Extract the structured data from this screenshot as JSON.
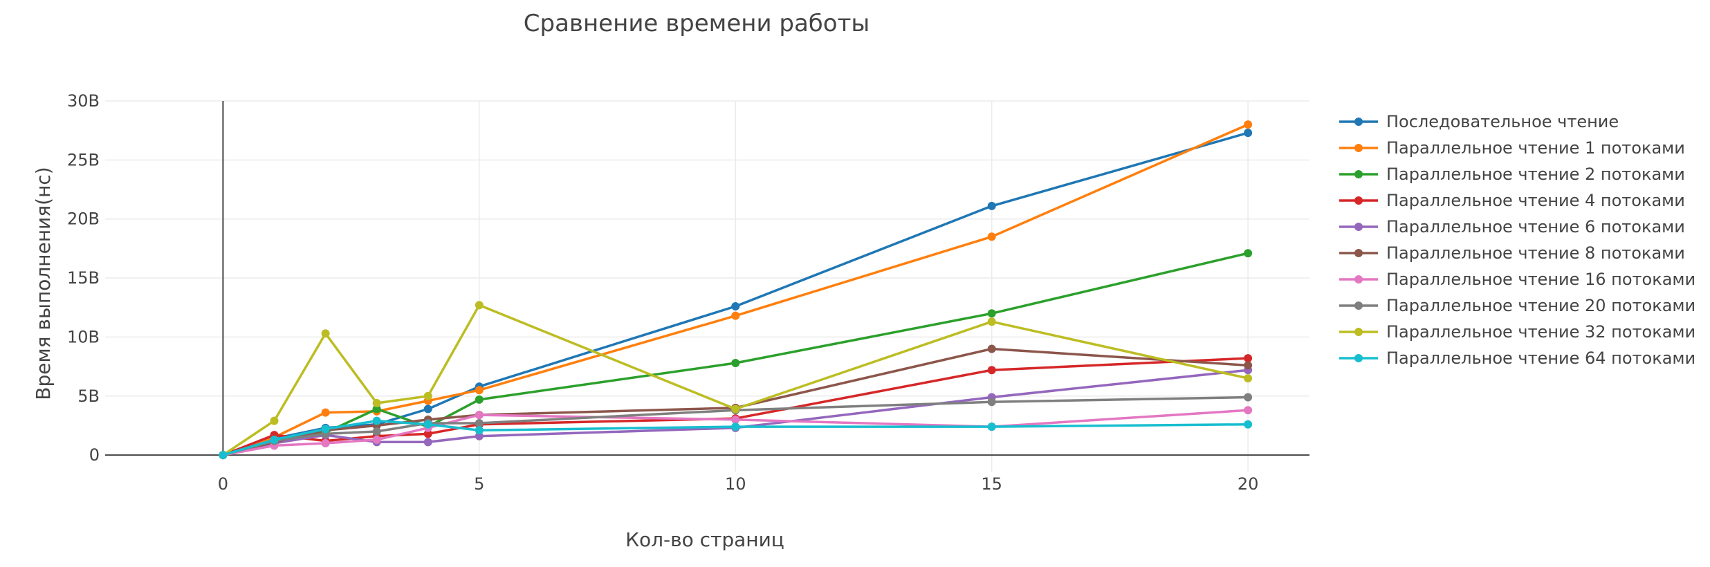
{
  "chart_data": {
    "type": "line",
    "title": "Сравнение времени работы",
    "xlabel": "Кол-во страниц",
    "ylabel": "Время выполнения(нс)",
    "x": [
      0,
      1,
      2,
      3,
      4,
      5,
      10,
      15,
      20
    ],
    "xticks": [
      0,
      5,
      10,
      15,
      20
    ],
    "xtick_labels": [
      "0",
      "5",
      "10",
      "15",
      "20"
    ],
    "yticks": [
      0,
      5000000000,
      10000000000,
      15000000000,
      20000000000,
      25000000000,
      30000000000
    ],
    "ytick_labels": [
      "0",
      "5B",
      "10B",
      "15B",
      "20B",
      "25B",
      "30B"
    ],
    "xlim": [
      -2.3,
      21.2
    ],
    "ylim": [
      -1400000000,
      30000000000
    ],
    "grid": true,
    "legend_position": "right",
    "series": [
      {
        "name": "Последовательное чтение",
        "color": "#1f77b4",
        "values": [
          0,
          1400000000,
          2300000000,
          2600000000,
          3900000000,
          5800000000,
          12600000000,
          21100000000,
          27300000000
        ]
      },
      {
        "name": "Параллельное чтение 1 потоками",
        "color": "#ff7f0e",
        "values": [
          0,
          1500000000,
          3600000000,
          3700000000,
          4600000000,
          5500000000,
          11800000000,
          18500000000,
          28000000000
        ]
      },
      {
        "name": "Параллельное чтение 2 потоками",
        "color": "#2ca02c",
        "values": [
          0,
          1200000000,
          1900000000,
          3900000000,
          2400000000,
          4700000000,
          7800000000,
          12000000000,
          17100000000
        ]
      },
      {
        "name": "Параллельное чтение 4 потоками",
        "color": "#d62728",
        "values": [
          0,
          1700000000,
          1200000000,
          1600000000,
          1800000000,
          2600000000,
          3100000000,
          7200000000,
          8200000000
        ]
      },
      {
        "name": "Параллельное чтение 6 потоками",
        "color": "#9467bd",
        "values": [
          0,
          1000000000,
          1700000000,
          1100000000,
          1100000000,
          1600000000,
          2300000000,
          4900000000,
          7200000000
        ]
      },
      {
        "name": "Параллельное чтение 8 потоками",
        "color": "#8c564b",
        "values": [
          0,
          1100000000,
          2100000000,
          2500000000,
          3000000000,
          3400000000,
          4000000000,
          9000000000,
          7600000000
        ]
      },
      {
        "name": "Параллельное чтение 16 потоками",
        "color": "#e377c2",
        "values": [
          0,
          800000000,
          1000000000,
          1300000000,
          2300000000,
          3400000000,
          3000000000,
          2400000000,
          3800000000
        ]
      },
      {
        "name": "Параллельное чтение 20 потоками",
        "color": "#7f7f7f",
        "values": [
          0,
          1200000000,
          1800000000,
          2000000000,
          2700000000,
          2700000000,
          3800000000,
          4500000000,
          4900000000
        ]
      },
      {
        "name": "Параллельное чтение 32 потоками",
        "color": "#bcbd22",
        "values": [
          0,
          2900000000,
          10300000000,
          4400000000,
          5000000000,
          12700000000,
          3900000000,
          11300000000,
          6500000000
        ]
      },
      {
        "name": "Параллельное чтение 64 потоками",
        "color": "#17becf",
        "values": [
          0,
          1300000000,
          2200000000,
          2900000000,
          2600000000,
          2100000000,
          2400000000,
          2400000000,
          2600000000
        ]
      }
    ]
  }
}
